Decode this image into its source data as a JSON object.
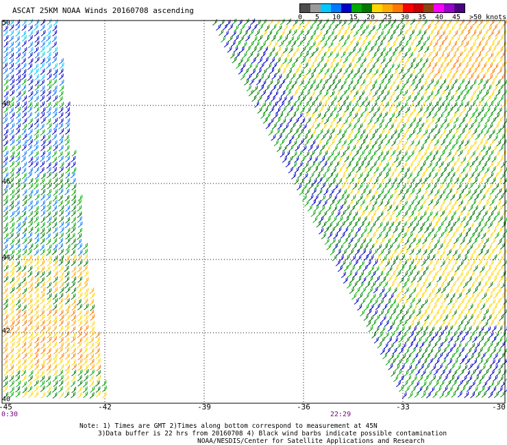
{
  "title": "ASCAT 25KM NOAA Winds 20160708 ascending",
  "legend": {
    "colors": [
      "#4d4d4d",
      "#9a9a9a",
      "#00c8ff",
      "#0078ff",
      "#0000c8",
      "#00aa00",
      "#007800",
      "#ffd700",
      "#ffaa00",
      "#ff7800",
      "#ff0000",
      "#c80000",
      "#8b4513",
      "#ff00ff",
      "#9900cc",
      "#4b0082"
    ],
    "labels": [
      "0",
      "5",
      "10",
      "15",
      "20",
      "25",
      "30",
      "35",
      "40",
      "45",
      ">50 knots"
    ]
  },
  "x_ticks": [
    "-45",
    "-42",
    "-39",
    "-36",
    "-33",
    "-30"
  ],
  "y_ticks": [
    "50",
    "48",
    "46",
    "44",
    "42",
    "40"
  ],
  "times": [
    "0:30",
    "22:29"
  ],
  "notes": [
    "Note: 1) Times are GMT 2)Times along bottom correspond to measurement at 45N",
    "3)Data buffer is 22 hrs from 20160708 4) Black wind barbs indicate possible contamination",
    "NOAA/NESDIS/Center for Satellite Applications and Research"
  ]
}
